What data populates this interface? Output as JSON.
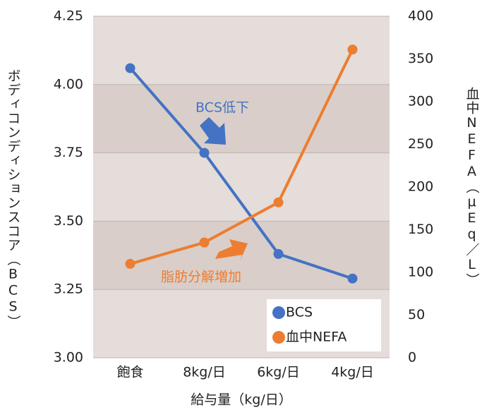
{
  "chart_data": {
    "type": "line",
    "categories": [
      "飽食",
      "8kg/日",
      "6kg/日",
      "4kg/日"
    ],
    "series": [
      {
        "name": "BCS",
        "color": "#4472c4",
        "values": [
          4.06,
          3.75,
          3.38,
          3.29
        ]
      },
      {
        "name": "血中NEFA",
        "color": "#ed7d31",
        "axis": "y2",
        "values": [
          110,
          135,
          182,
          361
        ]
      }
    ],
    "ylim": [
      3.0,
      4.25
    ],
    "yticks": [
      {
        "value": 3,
        "label": "3.00"
      },
      3.25,
      {
        "value": 3.5,
        "label": "3.50"
      },
      3.75,
      {
        "value": 4,
        "label": "4.00"
      },
      4.25
    ],
    "y2lim": [
      0,
      400
    ],
    "y2ticks": [
      0,
      50,
      100,
      150,
      200,
      250,
      300,
      350,
      400
    ],
    "ylabel": "ボディコンディションスコア（BCS）",
    "y2label": "血中NEFA（μEq／L）",
    "xlabel": "給与量（kg/日）",
    "annotations": [
      "BCS低下",
      "脂肪分解増加"
    ],
    "grid": true,
    "legend": "lower right"
  }
}
